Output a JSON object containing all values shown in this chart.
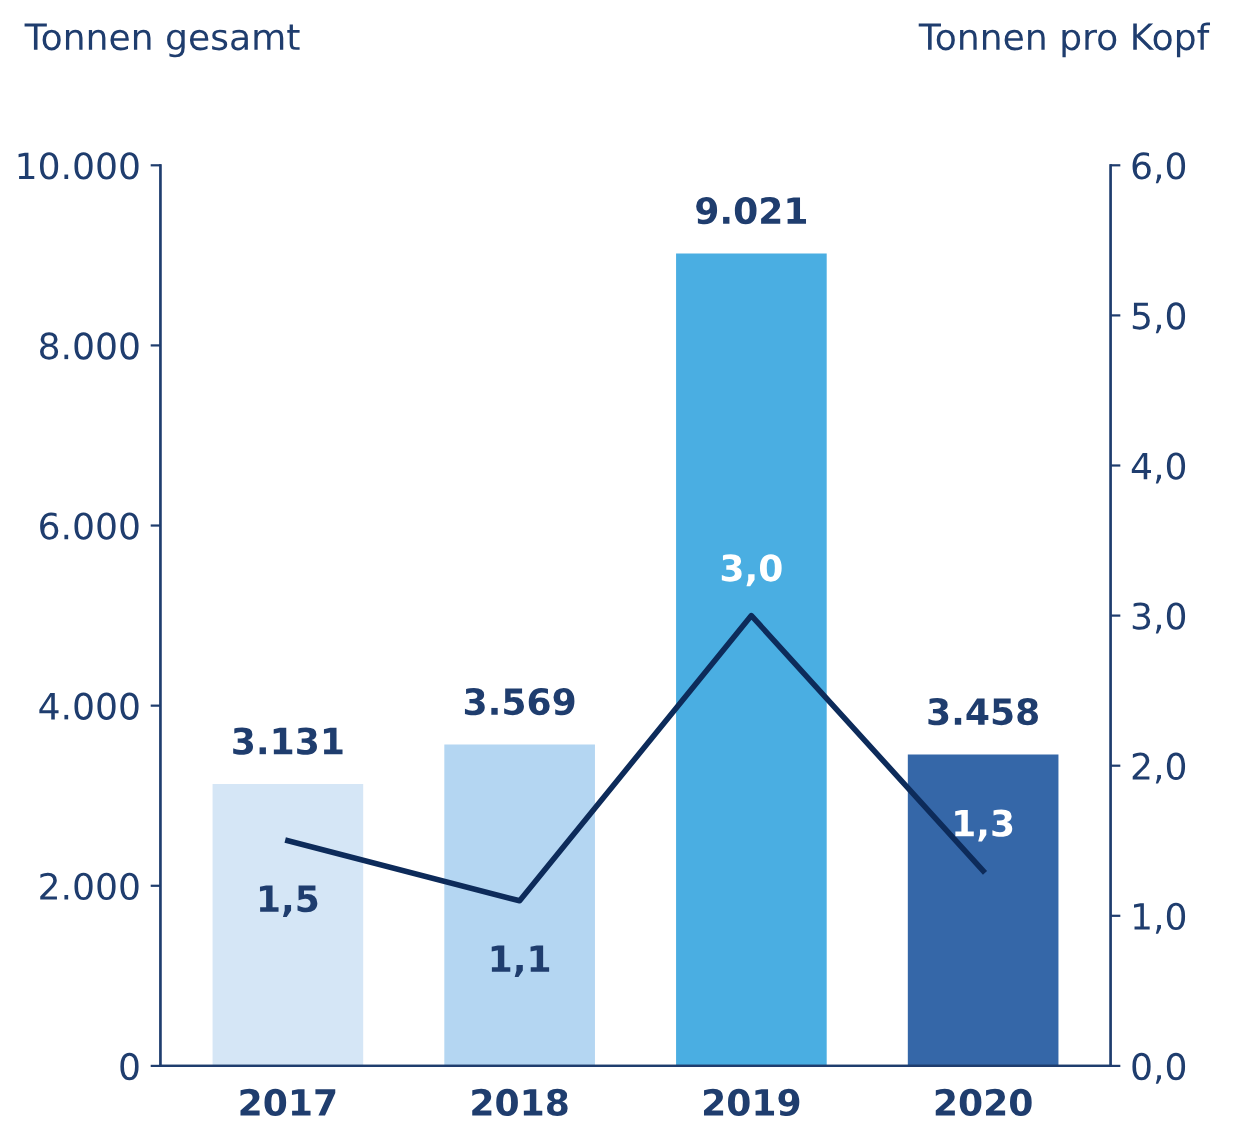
{
  "chart_data": {
    "type": "bar",
    "ylabel": "Tonnen gesamt",
    "y2label": "Tonnen pro Kopf",
    "categories": [
      "2017",
      "2018",
      "2019",
      "2020"
    ],
    "series": [
      {
        "colors": [
          "#d5e6f6",
          "#b4d6f2",
          "#4aaee2",
          "#3567a8"
        ],
        "values": [
          3131,
          3569,
          9021,
          3458
        ],
        "value_labels": [
          "3.131",
          "3.569",
          "9.021",
          "3.458"
        ]
      },
      {
        "type": "line",
        "axis": "y2",
        "color": "#0d2b5a",
        "values": [
          1.5,
          1.1,
          3.0,
          1.3
        ],
        "value_labels": [
          "1,5",
          "1,1",
          "3,0",
          "1,3"
        ]
      }
    ],
    "ylim": [
      0,
      10000
    ],
    "yticks": [
      {
        "value": 0,
        "label": "0"
      },
      {
        "value": 2000,
        "label": "2.000"
      },
      {
        "value": 4000,
        "label": "4.000"
      },
      {
        "value": 6000,
        "label": "6.000"
      },
      {
        "value": 8000,
        "label": "8.000"
      },
      {
        "value": 10000,
        "label": "10.000"
      }
    ],
    "y2lim": [
      0,
      6
    ],
    "y2ticks": [
      {
        "value": 0,
        "label": "0,0"
      },
      {
        "value": 1,
        "label": "1,0"
      },
      {
        "value": 2,
        "label": "2,0"
      },
      {
        "value": 3,
        "label": "3,0"
      },
      {
        "value": 4,
        "label": "4,0"
      },
      {
        "value": 5,
        "label": "5,0"
      },
      {
        "value": 6,
        "label": "6,0"
      }
    ],
    "grid": false,
    "legend": false,
    "marker": "none",
    "line_style": "solid"
  }
}
